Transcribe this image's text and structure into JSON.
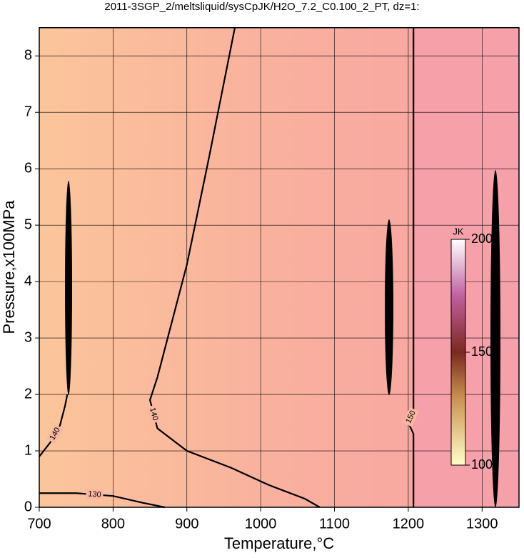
{
  "chart_data": {
    "type": "contour",
    "title": "2011-3SGP_2/meltsliquid/sysCpJK/H2O_7.2_C0.100_2_PT, dz=1:",
    "x_label": "Temperature,°C",
    "y_label": "Pressure,x100MPa",
    "xlim": [
      700,
      1350
    ],
    "ylim": [
      0,
      8.5
    ],
    "xticks": [
      700,
      800,
      900,
      1000,
      1100,
      1200,
      1300
    ],
    "yticks": [
      0,
      1,
      2,
      3,
      4,
      5,
      6,
      7,
      8
    ],
    "grid": true,
    "contours": [
      {
        "level": 140,
        "x": [
          1080,
          1060,
          1010,
          960,
          900,
          860,
          850,
          860,
          880,
          900,
          930,
          965
        ],
        "y": [
          0,
          0.15,
          0.4,
          0.7,
          1.0,
          1.4,
          1.9,
          2.3,
          3.3,
          4.3,
          6.2,
          8.5
        ]
      },
      {
        "level": 140,
        "x": [
          700,
          715,
          728,
          735,
          738
        ],
        "y": [
          0.9,
          1.15,
          1.45,
          1.8,
          2.0
        ]
      },
      {
        "level": 150,
        "x": [
          1207,
          1207,
          1200,
          1207,
          1207,
          1207
        ],
        "y": [
          0,
          1.3,
          1.5,
          1.7,
          4.0,
          8.5
        ]
      },
      {
        "level": 130,
        "x": [
          700,
          750,
          800,
          840,
          870
        ],
        "y": [
          0.25,
          0.25,
          0.2,
          0.08,
          0
        ]
      }
    ],
    "colorbar": {
      "label": "JK",
      "lim": [
        100,
        200
      ],
      "ticks": [
        100,
        150,
        200
      ]
    }
  }
}
